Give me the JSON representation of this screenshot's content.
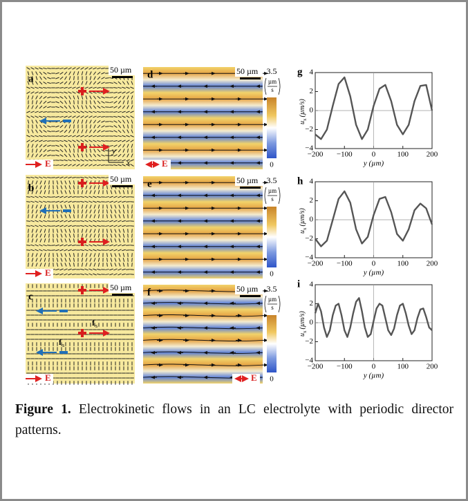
{
  "figure": {
    "director_panels": [
      {
        "label": "a",
        "scale": "50 µm",
        "field": "E",
        "axis_y": "y",
        "axis_x": "x"
      },
      {
        "label": "b",
        "scale": "50 µm",
        "field": "E"
      },
      {
        "label": "c",
        "scale": "50 µm",
        "field": "E",
        "force_symbol": "f",
        "force_subscript": "s"
      }
    ],
    "flow_panels": [
      {
        "label": "d",
        "scale": "50 µm",
        "field": "E",
        "colorbar_max": "3.5",
        "colorbar_unit_top": "µm",
        "colorbar_unit_bottom": "s",
        "colorbar_min": "0"
      },
      {
        "label": "e",
        "scale": "50 µm",
        "colorbar_max": "3.5",
        "colorbar_unit_top": "µm",
        "colorbar_unit_bottom": "s",
        "colorbar_min": "0"
      },
      {
        "label": "f",
        "scale": "50 µm",
        "field": "E",
        "colorbar_max": "3.5",
        "colorbar_unit_top": "µm",
        "colorbar_unit_bottom": "s",
        "colorbar_min": "0"
      }
    ]
  },
  "chart_data": [
    {
      "type": "line",
      "panel_label": "g",
      "x_label": "y (µm)",
      "y_label": "u",
      "y_label_sub": "x",
      "y_label_unit": "(µm/s)",
      "x": [
        -200,
        -180,
        -160,
        -140,
        -120,
        -100,
        -80,
        -60,
        -40,
        -20,
        0,
        20,
        40,
        60,
        80,
        100,
        120,
        140,
        160,
        180,
        200
      ],
      "values": [
        -2.5,
        -3,
        -2,
        0.5,
        2.8,
        3.5,
        1.5,
        -1.5,
        -3,
        -2,
        0.5,
        2.3,
        2.7,
        1,
        -1.5,
        -2.5,
        -1.5,
        1,
        2.6,
        2.7,
        0
      ],
      "color": "#555555",
      "xlim": [
        -200,
        200
      ],
      "ylim": [
        -4,
        4
      ],
      "xticks": [
        {
          "value": -200,
          "label": "−200"
        },
        {
          "value": -100,
          "label": "−100"
        },
        0,
        100,
        200
      ],
      "yticks": [
        {
          "value": -4,
          "label": "−4"
        },
        {
          "value": -2,
          "label": "−2"
        },
        0,
        2,
        4
      ],
      "zero_lines": true
    },
    {
      "type": "line",
      "panel_label": "h",
      "x_label": "y (µm)",
      "y_label": "u",
      "y_label_sub": "x",
      "y_label_unit": "(µm/s)",
      "x": [
        -200,
        -180,
        -160,
        -140,
        -120,
        -100,
        -80,
        -60,
        -40,
        -20,
        0,
        20,
        40,
        60,
        80,
        100,
        120,
        140,
        160,
        180,
        200
      ],
      "values": [
        -2,
        -2.8,
        -2.2,
        0,
        2.2,
        3,
        1.8,
        -1,
        -2.5,
        -1.8,
        0.5,
        2.2,
        2.4,
        0.8,
        -1.5,
        -2.2,
        -1,
        1,
        1.7,
        1.2,
        -0.5
      ],
      "color": "#555555",
      "xlim": [
        -200,
        200
      ],
      "ylim": [
        -4,
        4
      ],
      "xticks": [
        {
          "value": -200,
          "label": "−200"
        },
        {
          "value": -100,
          "label": "−100"
        },
        0,
        100,
        200
      ],
      "yticks": [
        {
          "value": -4,
          "label": "−4"
        },
        {
          "value": -2,
          "label": "−2"
        },
        0,
        2,
        4
      ],
      "zero_lines": true
    },
    {
      "type": "line",
      "panel_label": "i",
      "x_label": "y (µm)",
      "y_label": "u",
      "y_label_sub": "x",
      "y_label_unit": "(µm/s)",
      "x": [
        -200,
        -190,
        -180,
        -170,
        -160,
        -150,
        -140,
        -130,
        -120,
        -110,
        -100,
        -90,
        -80,
        -70,
        -60,
        -50,
        -40,
        -30,
        -20,
        -10,
        0,
        10,
        20,
        30,
        40,
        50,
        60,
        70,
        80,
        90,
        100,
        110,
        120,
        130,
        140,
        150,
        160,
        170,
        180,
        190,
        200
      ],
      "values": [
        1,
        2,
        1.2,
        -0.5,
        -1.5,
        -0.8,
        0.8,
        1.8,
        2,
        0.8,
        -0.8,
        -1.5,
        -0.5,
        1,
        2.2,
        2.6,
        1.2,
        -0.5,
        -1.5,
        -1.2,
        0.2,
        1.5,
        2,
        1.8,
        0.5,
        -0.8,
        -1.3,
        -0.6,
        0.8,
        1.8,
        2,
        1,
        -0.3,
        -1.2,
        -0.8,
        0.5,
        1.4,
        1.5,
        0.6,
        -0.5,
        -0.8
      ],
      "color": "#555555",
      "xlim": [
        -200,
        200
      ],
      "ylim": [
        -4,
        4
      ],
      "xticks": [
        {
          "value": -200,
          "label": "−200"
        },
        {
          "value": -100,
          "label": "−100"
        },
        0,
        100,
        200
      ],
      "yticks": [
        {
          "value": -4,
          "label": "−4"
        },
        {
          "value": -2,
          "label": "−2"
        },
        0,
        2,
        4
      ],
      "zero_lines": true
    }
  ],
  "caption": {
    "label": "Figure 1.",
    "text": "Electrokinetic flows in an LC electrolyte with periodic director patterns."
  }
}
